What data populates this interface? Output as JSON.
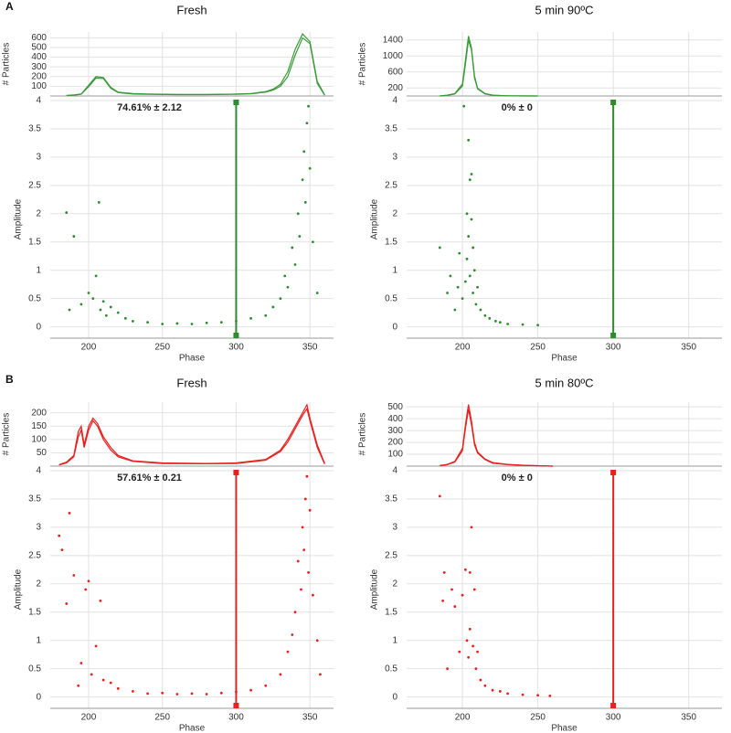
{
  "chart_data": [
    {
      "type": "scatter",
      "panel_label": "A",
      "title": "Fresh",
      "annotation": "74.61% ± 2.12",
      "color": "#2e8b2e",
      "xlabel": "Phase",
      "ylabel": "Amplitude",
      "xlim": [
        174,
        366
      ],
      "xticks": [
        200,
        250,
        300,
        350
      ],
      "ylim": [
        -0.2,
        4
      ],
      "yticks": [
        0,
        0.5,
        1,
        1.5,
        2,
        2.5,
        3,
        3.5,
        4
      ],
      "grid": true,
      "gate": 300,
      "x": [
        185,
        187,
        190,
        195,
        200,
        203,
        205,
        207,
        208,
        210,
        212,
        215,
        220,
        225,
        230,
        240,
        250,
        260,
        270,
        280,
        290,
        300,
        310,
        320,
        325,
        330,
        333,
        335,
        338,
        340,
        342,
        343,
        345,
        346,
        347,
        348,
        349,
        350,
        352,
        355
      ],
      "values": [
        2.02,
        0.3,
        1.6,
        0.4,
        0.6,
        0.5,
        0.9,
        2.2,
        0.3,
        0.45,
        0.2,
        0.35,
        0.25,
        0.15,
        0.1,
        0.08,
        0.05,
        0.06,
        0.05,
        0.07,
        0.08,
        0.1,
        0.15,
        0.2,
        0.35,
        0.5,
        0.9,
        0.7,
        1.4,
        1.1,
        2.0,
        1.6,
        2.6,
        3.1,
        2.2,
        3.6,
        3.9,
        2.8,
        1.5,
        0.6
      ],
      "histogram": {
        "type": "line",
        "ylabel": "# Particles",
        "ylim": [
          0,
          660
        ],
        "yticks": [
          100,
          200,
          300,
          400,
          500,
          600
        ],
        "x": [
          185,
          190,
          195,
          200,
          205,
          210,
          215,
          220,
          230,
          240,
          260,
          280,
          300,
          310,
          320,
          325,
          330,
          335,
          340,
          345,
          350,
          355,
          360
        ],
        "series": [
          {
            "color": "#3a9a3a",
            "values": [
              5,
              10,
              20,
              110,
              200,
              190,
              90,
              40,
              25,
              20,
              15,
              15,
              20,
              25,
              45,
              70,
              120,
              250,
              480,
              640,
              560,
              150,
              10
            ]
          },
          {
            "color": "#3a9a3a",
            "values": [
              5,
              8,
              18,
              95,
              185,
              180,
              80,
              35,
              20,
              18,
              14,
              14,
              18,
              22,
              40,
              60,
              100,
              200,
              420,
              600,
              540,
              130,
              8
            ]
          }
        ]
      }
    },
    {
      "type": "scatter",
      "title": "5 min 90ºC",
      "annotation": "0% ± 0",
      "color": "#2e8b2e",
      "xlabel": "Phase",
      "ylabel": "Amplitude",
      "xlim": [
        163,
        372
      ],
      "xticks": [
        200,
        250,
        300,
        350
      ],
      "ylim": [
        -0.2,
        4
      ],
      "yticks": [
        0,
        0.5,
        1,
        1.5,
        2,
        2.5,
        3,
        3.5,
        4
      ],
      "grid": true,
      "gate": 300,
      "x": [
        185,
        190,
        192,
        195,
        197,
        198,
        200,
        201,
        202,
        203,
        203,
        204,
        204,
        205,
        205,
        206,
        206,
        207,
        207,
        208,
        209,
        210,
        212,
        215,
        218,
        222,
        225,
        230,
        240,
        250
      ],
      "values": [
        1.4,
        0.6,
        0.9,
        0.3,
        0.7,
        1.3,
        0.5,
        3.9,
        0.8,
        2.0,
        1.2,
        3.3,
        1.6,
        2.6,
        0.9,
        2.7,
        1.9,
        0.6,
        1.4,
        1.0,
        0.4,
        0.7,
        0.3,
        0.2,
        0.15,
        0.1,
        0.08,
        0.05,
        0.04,
        0.03
      ],
      "histogram": {
        "type": "line",
        "ylabel": "# Particles",
        "ylim": [
          0,
          1600
        ],
        "yticks": [
          200,
          600,
          1000,
          1400
        ],
        "x": [
          185,
          190,
          195,
          200,
          202,
          204,
          206,
          208,
          210,
          215,
          220,
          230,
          240,
          250
        ],
        "series": [
          {
            "color": "#3a9a3a",
            "values": [
              0,
              20,
              60,
              300,
              900,
              1500,
              1200,
              500,
              200,
              60,
              20,
              5,
              2,
              0
            ]
          },
          {
            "color": "#3a9a3a",
            "values": [
              0,
              15,
              50,
              250,
              800,
              1400,
              1150,
              450,
              180,
              50,
              15,
              4,
              1,
              0
            ]
          }
        ]
      }
    },
    {
      "type": "scatter",
      "panel_label": "B",
      "title": "Fresh",
      "annotation": "57.61% ± 0.21",
      "color": "#e8201e",
      "xlabel": "Phase",
      "ylabel": "Amplitude",
      "xlim": [
        174,
        366
      ],
      "xticks": [
        200,
        250,
        300,
        350
      ],
      "ylim": [
        -0.2,
        4
      ],
      "yticks": [
        0,
        0.5,
        1,
        1.5,
        2,
        2.5,
        3,
        3.5,
        4
      ],
      "grid": true,
      "gate": 300,
      "x": [
        180,
        182,
        185,
        187,
        190,
        193,
        195,
        198,
        200,
        202,
        205,
        208,
        210,
        215,
        220,
        230,
        240,
        250,
        260,
        270,
        280,
        290,
        300,
        310,
        320,
        330,
        335,
        338,
        340,
        342,
        344,
        345,
        346,
        347,
        348,
        349,
        350,
        352,
        355,
        357
      ],
      "values": [
        2.85,
        2.6,
        1.65,
        3.25,
        2.15,
        0.2,
        0.6,
        1.9,
        2.05,
        0.4,
        0.9,
        1.7,
        0.3,
        0.25,
        0.15,
        0.1,
        0.06,
        0.07,
        0.05,
        0.06,
        0.05,
        0.07,
        0.09,
        0.12,
        0.2,
        0.4,
        0.8,
        1.1,
        1.5,
        2.4,
        1.9,
        3.0,
        2.6,
        3.5,
        3.9,
        2.2,
        3.3,
        1.8,
        1.0,
        0.4
      ],
      "histogram": {
        "type": "line",
        "ylabel": "# Particles",
        "ylim": [
          0,
          240
        ],
        "yticks": [
          50,
          100,
          150,
          200
        ],
        "x": [
          180,
          185,
          190,
          193,
          195,
          197,
          200,
          203,
          206,
          210,
          215,
          220,
          230,
          250,
          280,
          300,
          320,
          330,
          335,
          340,
          345,
          348,
          350,
          355,
          360
        ],
        "series": [
          {
            "color": "#e8201e",
            "values": [
              5,
              15,
              40,
              130,
              150,
              80,
              150,
              180,
              160,
              110,
              70,
              40,
              20,
              12,
              10,
              12,
              25,
              60,
              100,
              150,
              200,
              230,
              180,
              80,
              10
            ]
          },
          {
            "color": "#e8201e",
            "values": [
              4,
              12,
              35,
              110,
              135,
              70,
              135,
              170,
              150,
              100,
              60,
              35,
              18,
              10,
              9,
              10,
              22,
              55,
              90,
              140,
              190,
              215,
              170,
              70,
              8
            ]
          }
        ]
      }
    },
    {
      "type": "scatter",
      "title": "5 min 80ºC",
      "annotation": "0% ± 0",
      "color": "#e8201e",
      "xlabel": "Phase",
      "ylabel": "Amplitude",
      "xlim": [
        163,
        372
      ],
      "xticks": [
        200,
        250,
        300,
        350
      ],
      "ylim": [
        -0.2,
        4
      ],
      "yticks": [
        0,
        0.5,
        1,
        1.5,
        2,
        2.5,
        3,
        3.5,
        4
      ],
      "grid": true,
      "gate": 300,
      "x": [
        185,
        187,
        188,
        190,
        193,
        195,
        198,
        200,
        202,
        203,
        204,
        205,
        205,
        206,
        207,
        208,
        209,
        210,
        212,
        215,
        220,
        225,
        230,
        240,
        250,
        258
      ],
      "values": [
        3.55,
        1.7,
        2.2,
        0.5,
        1.9,
        1.6,
        0.8,
        1.8,
        2.25,
        1.0,
        0.7,
        2.2,
        1.2,
        3.0,
        0.9,
        1.9,
        0.5,
        0.8,
        0.3,
        0.2,
        0.12,
        0.1,
        0.06,
        0.04,
        0.03,
        0.02
      ],
      "histogram": {
        "type": "line",
        "ylabel": "# Particles",
        "ylim": [
          0,
          540
        ],
        "yticks": [
          100,
          200,
          300,
          400,
          500
        ],
        "x": [
          185,
          190,
          195,
          200,
          202,
          204,
          206,
          208,
          210,
          215,
          220,
          230,
          240,
          250,
          260
        ],
        "series": [
          {
            "color": "#e8201e",
            "values": [
              5,
              15,
              40,
              150,
              350,
              520,
              380,
              200,
              120,
              60,
              30,
              15,
              8,
              4,
              0
            ]
          },
          {
            "color": "#e8201e",
            "values": [
              4,
              12,
              35,
              130,
              320,
              480,
              350,
              180,
              110,
              55,
              25,
              12,
              6,
              3,
              0
            ]
          }
        ]
      }
    }
  ]
}
